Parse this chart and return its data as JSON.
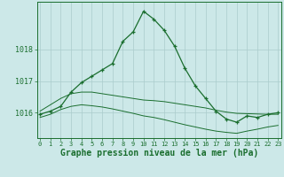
{
  "title": "Graphe pression niveau de la mer (hPa)",
  "background_color": "#cce8e8",
  "grid_color": "#aacccc",
  "line_color": "#1a6e2e",
  "hours": [
    0,
    1,
    2,
    3,
    4,
    5,
    6,
    7,
    8,
    9,
    10,
    11,
    12,
    13,
    14,
    15,
    16,
    17,
    18,
    19,
    20,
    21,
    22,
    23
  ],
  "main_line": [
    1015.95,
    1016.05,
    1016.2,
    1016.65,
    1016.95,
    1017.15,
    1017.35,
    1017.55,
    1018.25,
    1018.55,
    1019.2,
    1018.95,
    1018.6,
    1018.1,
    1017.4,
    1016.85,
    1016.45,
    1016.05,
    1015.8,
    1015.7,
    1015.9,
    1015.85,
    1015.95,
    1016.0
  ],
  "upper_line": [
    1016.05,
    1016.25,
    1016.45,
    1016.6,
    1016.65,
    1016.65,
    1016.6,
    1016.55,
    1016.5,
    1016.45,
    1016.4,
    1016.38,
    1016.35,
    1016.3,
    1016.25,
    1016.2,
    1016.15,
    1016.08,
    1016.02,
    1015.98,
    1015.97,
    1015.96,
    1015.95,
    1015.95
  ],
  "lower_line": [
    1015.85,
    1015.95,
    1016.1,
    1016.2,
    1016.25,
    1016.22,
    1016.18,
    1016.12,
    1016.05,
    1015.98,
    1015.9,
    1015.85,
    1015.78,
    1015.7,
    1015.62,
    1015.55,
    1015.48,
    1015.42,
    1015.38,
    1015.35,
    1015.42,
    1015.48,
    1015.55,
    1015.6
  ],
  "ylim": [
    1015.2,
    1019.5
  ],
  "yticks": [
    1016,
    1017,
    1018
  ],
  "tick_fontsize": 6,
  "title_fontsize": 7
}
